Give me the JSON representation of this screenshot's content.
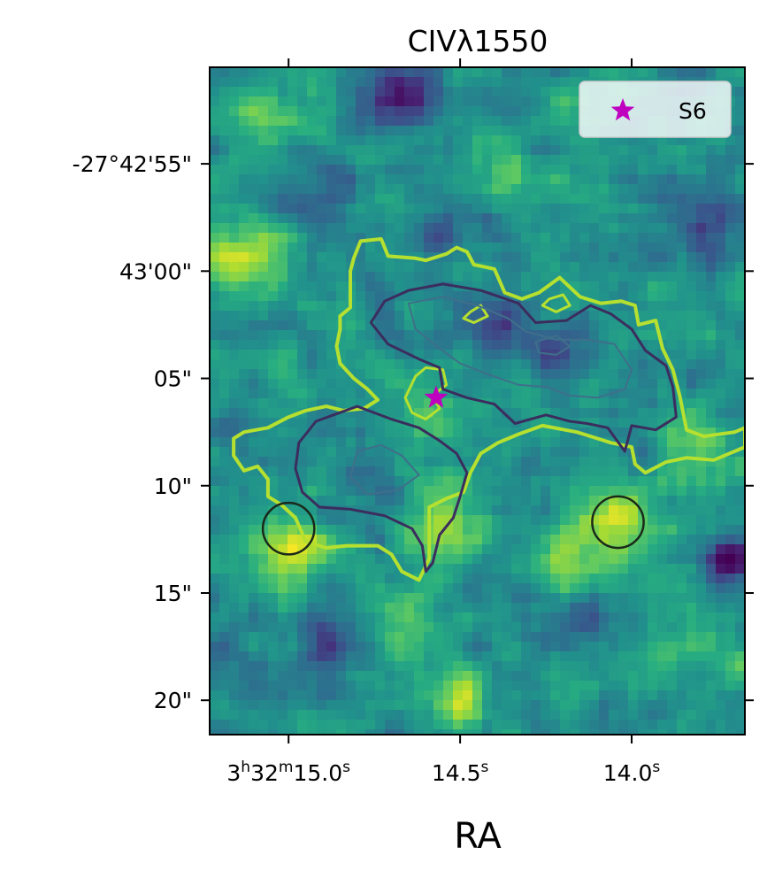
{
  "chart_data": {
    "type": "heatmap",
    "title": "CIVλ1550",
    "xlabel": "RA",
    "ylabel": "",
    "colormap": "viridis",
    "xlim_seconds": [
      15.23,
      13.67
    ],
    "ylim_arcsec": [
      21.6,
      -9.5
    ],
    "x_ticks": [
      {
        "value": 15.0,
        "label_hms": {
          "h": "3",
          "h_unit": "h",
          "m": "32",
          "m_unit": "m",
          "s": "15.0",
          "s_unit": "s"
        }
      },
      {
        "value": 14.5,
        "label_hms": {
          "h": "",
          "h_unit": "",
          "m": "",
          "m_unit": "",
          "s": "14.5",
          "s_unit": "s"
        }
      },
      {
        "value": 14.0,
        "label_hms": {
          "h": "",
          "h_unit": "",
          "m": "",
          "m_unit": "",
          "s": "14.0",
          "s_unit": "s"
        }
      }
    ],
    "y_ticks": [
      {
        "value": -5,
        "label": "-27°42'55\""
      },
      {
        "value": 0,
        "label": "43'00\""
      },
      {
        "value": 5,
        "label": "05\""
      },
      {
        "value": 10,
        "label": "10\""
      },
      {
        "value": 15,
        "label": "15\""
      },
      {
        "value": 20,
        "label": "20\""
      }
    ],
    "legend": {
      "placement": "top-right",
      "entries": [
        {
          "label": "S6",
          "marker": "star",
          "color": "#bf00bf"
        }
      ]
    },
    "markers": [
      {
        "name": "S6",
        "type": "star",
        "ra_s": 14.57,
        "dec_arcsec": 5.9,
        "color": "#bf00bf"
      }
    ],
    "circles": [
      {
        "ra_s": 15.0,
        "dec_arcsec": 12.0,
        "radius_arcsec": 1.2,
        "color": "#1a2a1a"
      },
      {
        "ra_s": 14.04,
        "dec_arcsec": 11.7,
        "radius_arcsec": 1.2,
        "color": "#1a2a1a"
      }
    ],
    "blobs": [
      {
        "ra_s": 15.0,
        "dec_arcsec": 12.9,
        "value": 1.0,
        "sigma": 1.1
      },
      {
        "ra_s": 14.04,
        "dec_arcsec": 11.6,
        "value": 1.0,
        "sigma": 1.1
      },
      {
        "ra_s": 14.51,
        "dec_arcsec": 20.0,
        "value": 0.9,
        "sigma": 0.9
      },
      {
        "ra_s": 15.13,
        "dec_arcsec": -0.7,
        "value": 0.75,
        "sigma": 1.3
      },
      {
        "ra_s": 14.55,
        "dec_arcsec": 12.0,
        "value": 0.7,
        "sigma": 1.3
      },
      {
        "ra_s": 14.18,
        "dec_arcsec": 13.5,
        "value": 0.65,
        "sigma": 1.4
      },
      {
        "ra_s": 14.7,
        "dec_arcsec": 16.5,
        "value": 0.45,
        "sigma": 1.5
      },
      {
        "ra_s": 13.82,
        "dec_arcsec": 8.0,
        "value": 0.6,
        "sigma": 1.0
      },
      {
        "ra_s": 14.35,
        "dec_arcsec": -4.5,
        "value": 0.4,
        "sigma": 1.5
      },
      {
        "ra_s": 15.05,
        "dec_arcsec": -7.0,
        "value": 0.5,
        "sigma": 1.2
      },
      {
        "ra_s": 14.62,
        "dec_arcsec": 6.8,
        "value": 0.45,
        "sigma": 1.1
      },
      {
        "ra_s": 13.9,
        "dec_arcsec": 17.5,
        "value": 0.4,
        "sigma": 1.6
      },
      {
        "ra_s": 14.68,
        "dec_arcsec": -8.3,
        "value": -0.85,
        "sigma": 1.3
      },
      {
        "ra_s": 14.22,
        "dec_arcsec": 3.8,
        "value": -0.8,
        "sigma": 0.8
      },
      {
        "ra_s": 13.71,
        "dec_arcsec": 13.4,
        "value": -1.0,
        "sigma": 0.7
      },
      {
        "ra_s": 14.42,
        "dec_arcsec": 2.7,
        "value": -0.55,
        "sigma": 1.0
      },
      {
        "ra_s": 14.85,
        "dec_arcsec": 17.3,
        "value": -0.5,
        "sigma": 1.4
      },
      {
        "ra_s": 14.15,
        "dec_arcsec": 16.3,
        "value": -0.55,
        "sigma": 1.1
      },
      {
        "ra_s": 14.95,
        "dec_arcsec": -3.6,
        "value": -0.45,
        "sigma": 1.3
      },
      {
        "ra_s": 14.55,
        "dec_arcsec": -1.5,
        "value": -0.4,
        "sigma": 1.2
      },
      {
        "ra_s": 13.78,
        "dec_arcsec": -1.8,
        "value": -0.4,
        "sigma": 1.3
      },
      {
        "ra_s": 15.18,
        "dec_arcsec": 19.0,
        "value": -0.35,
        "sigma": 1.3
      },
      {
        "ra_s": 14.76,
        "dec_arcsec": 10.5,
        "value": -0.3,
        "sigma": 1.0
      }
    ],
    "contours": [
      {
        "level": "outer",
        "color": "#b6e02f",
        "width": 4,
        "points": [
          [
            14.79,
            -1.4
          ],
          [
            14.73,
            -1.5
          ],
          [
            14.71,
            -0.7
          ],
          [
            14.63,
            -0.6
          ],
          [
            14.6,
            -0.5
          ],
          [
            14.54,
            -0.8
          ],
          [
            14.51,
            -1.1
          ],
          [
            14.48,
            -0.9
          ],
          [
            14.46,
            -0.3
          ],
          [
            14.4,
            -0.1
          ],
          [
            14.37,
            1.0
          ],
          [
            14.32,
            1.3
          ],
          [
            14.27,
            1.0
          ],
          [
            14.21,
            0.3
          ],
          [
            14.15,
            1.2
          ],
          [
            14.09,
            1.5
          ],
          [
            14.03,
            1.4
          ],
          [
            13.99,
            1.6
          ],
          [
            13.98,
            2.5
          ],
          [
            13.93,
            2.3
          ],
          [
            13.91,
            3.6
          ],
          [
            13.88,
            4.6
          ],
          [
            13.86,
            5.8
          ],
          [
            13.84,
            7.4
          ],
          [
            13.79,
            7.7
          ],
          [
            13.7,
            7.5
          ],
          [
            13.67,
            7.3
          ],
          [
            13.67,
            8.2
          ],
          [
            13.76,
            8.8
          ],
          [
            13.84,
            8.7
          ],
          [
            13.9,
            8.9
          ],
          [
            13.96,
            9.4
          ],
          [
            13.99,
            9.0
          ],
          [
            14.0,
            8.2
          ],
          [
            14.06,
            8.0
          ],
          [
            14.1,
            7.8
          ],
          [
            14.16,
            7.5
          ],
          [
            14.26,
            7.2
          ],
          [
            14.33,
            7.6
          ],
          [
            14.39,
            8.0
          ],
          [
            14.44,
            8.5
          ],
          [
            14.47,
            9.4
          ],
          [
            14.49,
            10.3
          ],
          [
            14.54,
            10.6
          ],
          [
            14.59,
            11.0
          ],
          [
            14.59,
            12.2
          ],
          [
            14.59,
            13.4
          ],
          [
            14.62,
            14.4
          ],
          [
            14.67,
            14.0
          ],
          [
            14.7,
            13.2
          ],
          [
            14.74,
            12.8
          ],
          [
            14.83,
            12.8
          ],
          [
            14.89,
            12.9
          ],
          [
            14.95,
            12.6
          ],
          [
            14.98,
            11.5
          ],
          [
            15.02,
            10.9
          ],
          [
            15.06,
            10.5
          ],
          [
            15.06,
            9.7
          ],
          [
            15.09,
            9.1
          ],
          [
            15.13,
            9.3
          ],
          [
            15.16,
            8.6
          ],
          [
            15.16,
            7.8
          ],
          [
            15.13,
            7.5
          ],
          [
            15.06,
            7.3
          ],
          [
            15.0,
            6.8
          ],
          [
            14.95,
            6.5
          ],
          [
            14.89,
            6.3
          ],
          [
            14.84,
            6.5
          ],
          [
            14.78,
            6.4
          ],
          [
            14.74,
            6.0
          ],
          [
            14.77,
            5.5
          ],
          [
            14.81,
            5.0
          ],
          [
            14.85,
            4.3
          ],
          [
            14.86,
            3.5
          ],
          [
            14.85,
            2.7
          ],
          [
            14.85,
            2.1
          ],
          [
            14.82,
            1.7
          ],
          [
            14.82,
            0.8
          ],
          [
            14.82,
            0.0
          ],
          [
            14.81,
            -0.6
          ],
          [
            14.79,
            -1.4
          ]
        ]
      },
      {
        "level": "inner-ring",
        "color": "#b6e02f",
        "width": 3,
        "points": [
          [
            14.63,
            4.9
          ],
          [
            14.6,
            4.5
          ],
          [
            14.55,
            4.6
          ],
          [
            14.54,
            5.3
          ],
          [
            14.58,
            5.8
          ],
          [
            14.56,
            6.4
          ],
          [
            14.6,
            6.9
          ],
          [
            14.64,
            6.6
          ],
          [
            14.66,
            5.9
          ],
          [
            14.63,
            4.9
          ]
        ]
      },
      {
        "level": "small",
        "color": "#b6e02f",
        "width": 3,
        "points": [
          [
            14.47,
            1.9
          ],
          [
            14.44,
            1.6
          ],
          [
            14.42,
            2.1
          ],
          [
            14.46,
            2.4
          ],
          [
            14.49,
            2.2
          ],
          [
            14.47,
            1.9
          ]
        ]
      },
      {
        "level": "small-2",
        "color": "#b6e02f",
        "width": 3,
        "points": [
          [
            14.24,
            1.3
          ],
          [
            14.2,
            1.1
          ],
          [
            14.18,
            1.6
          ],
          [
            14.22,
            1.9
          ],
          [
            14.26,
            1.6
          ],
          [
            14.24,
            1.3
          ]
        ]
      },
      {
        "level": "mid-upper",
        "color": "#3b2d5e",
        "width": 3,
        "points": [
          [
            14.72,
            1.4
          ],
          [
            14.65,
            0.9
          ],
          [
            14.55,
            0.6
          ],
          [
            14.44,
            0.9
          ],
          [
            14.33,
            1.5
          ],
          [
            14.28,
            2.4
          ],
          [
            14.19,
            2.3
          ],
          [
            14.12,
            1.6
          ],
          [
            14.06,
            2.0
          ],
          [
            14.0,
            2.7
          ],
          [
            13.96,
            3.7
          ],
          [
            13.9,
            4.4
          ],
          [
            13.88,
            5.4
          ],
          [
            13.87,
            6.8
          ],
          [
            13.93,
            7.4
          ],
          [
            14.0,
            7.2
          ],
          [
            14.02,
            8.4
          ],
          [
            14.07,
            7.3
          ],
          [
            14.13,
            7.1
          ],
          [
            14.18,
            7.0
          ],
          [
            14.25,
            6.7
          ],
          [
            14.34,
            7.1
          ],
          [
            14.4,
            6.2
          ],
          [
            14.48,
            5.9
          ],
          [
            14.55,
            5.5
          ],
          [
            14.56,
            4.5
          ],
          [
            14.62,
            4.1
          ],
          [
            14.71,
            3.4
          ],
          [
            14.76,
            2.4
          ],
          [
            14.72,
            1.4
          ]
        ]
      },
      {
        "level": "mid-lower",
        "color": "#3b2d5e",
        "width": 3,
        "points": [
          [
            14.97,
            8.0
          ],
          [
            14.92,
            7.0
          ],
          [
            14.8,
            6.3
          ],
          [
            14.7,
            6.9
          ],
          [
            14.62,
            7.3
          ],
          [
            14.56,
            7.9
          ],
          [
            14.51,
            8.5
          ],
          [
            14.48,
            9.4
          ],
          [
            14.5,
            10.5
          ],
          [
            14.52,
            11.5
          ],
          [
            14.56,
            12.3
          ],
          [
            14.58,
            13.6
          ],
          [
            14.6,
            14.0
          ],
          [
            14.61,
            12.8
          ],
          [
            14.64,
            12.0
          ],
          [
            14.72,
            11.4
          ],
          [
            14.82,
            11.1
          ],
          [
            14.91,
            11.0
          ],
          [
            14.96,
            10.3
          ],
          [
            14.98,
            9.2
          ],
          [
            14.97,
            8.0
          ]
        ]
      },
      {
        "level": "high-upper",
        "color": "#3f6f8a",
        "width": 2,
        "points": [
          [
            14.65,
            1.5
          ],
          [
            14.55,
            1.2
          ],
          [
            14.45,
            1.6
          ],
          [
            14.36,
            2.2
          ],
          [
            14.31,
            2.8
          ],
          [
            14.22,
            3.2
          ],
          [
            14.13,
            3.2
          ],
          [
            14.05,
            3.4
          ],
          [
            14.0,
            4.6
          ],
          [
            14.02,
            5.5
          ],
          [
            14.1,
            5.9
          ],
          [
            14.18,
            5.8
          ],
          [
            14.25,
            5.4
          ],
          [
            14.33,
            5.3
          ],
          [
            14.42,
            4.8
          ],
          [
            14.5,
            4.3
          ],
          [
            14.56,
            3.6
          ],
          [
            14.63,
            2.7
          ],
          [
            14.65,
            1.5
          ]
        ]
      },
      {
        "level": "high-lower",
        "color": "#3f6f8a",
        "width": 2,
        "points": [
          [
            14.8,
            8.4
          ],
          [
            14.73,
            8.1
          ],
          [
            14.67,
            8.6
          ],
          [
            14.62,
            9.5
          ],
          [
            14.68,
            10.2
          ],
          [
            14.77,
            10.4
          ],
          [
            14.82,
            9.6
          ],
          [
            14.8,
            8.4
          ]
        ]
      },
      {
        "level": "high-small",
        "color": "#3f6f8a",
        "width": 2,
        "points": [
          [
            14.28,
            3.3
          ],
          [
            14.22,
            3.0
          ],
          [
            14.18,
            3.5
          ],
          [
            14.22,
            3.9
          ],
          [
            14.27,
            3.8
          ],
          [
            14.28,
            3.3
          ]
        ]
      }
    ]
  }
}
